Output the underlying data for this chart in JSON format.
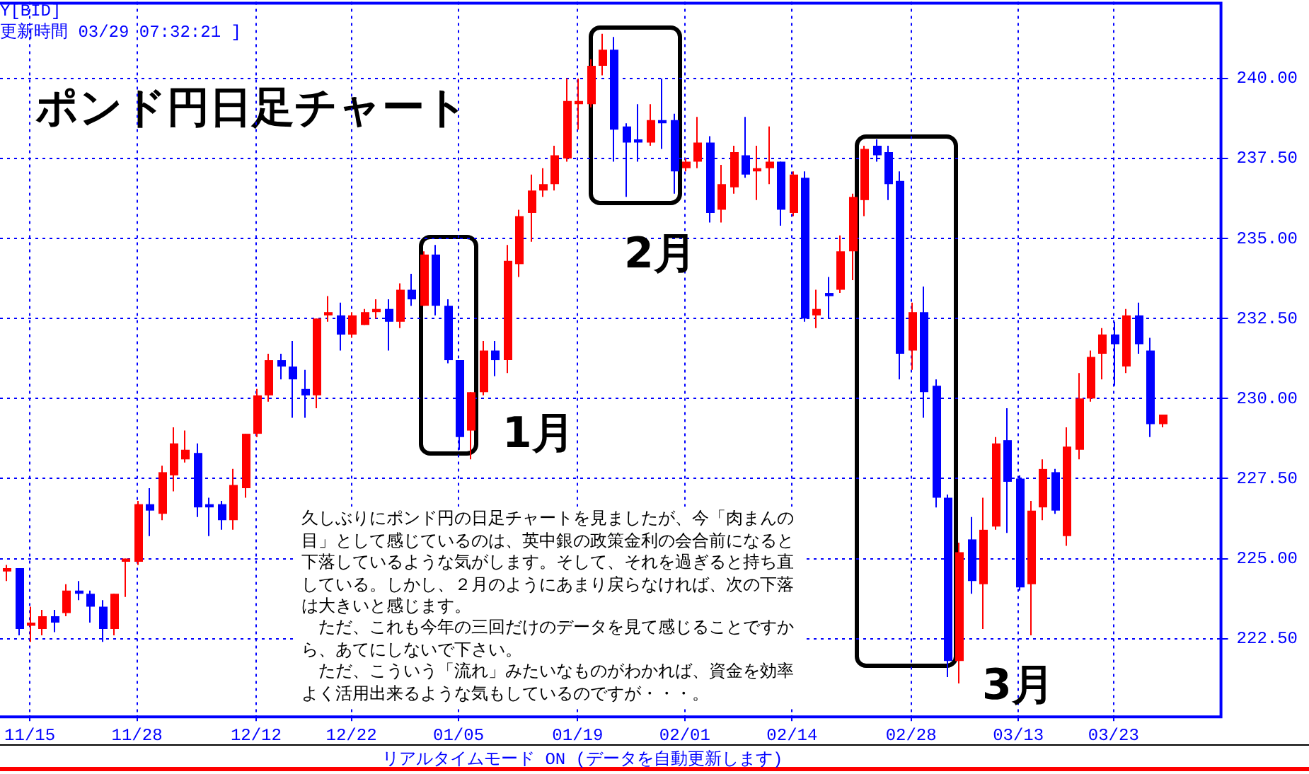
{
  "chart_data": {
    "type": "candlestick",
    "title": "ポンド円日足チャート",
    "categories": [
      null,
      null,
      "11/15",
      null,
      null,
      null,
      null,
      null,
      null,
      null,
      null,
      "11/28",
      null,
      null,
      null,
      null,
      null,
      null,
      null,
      null,
      null,
      "12/12",
      null,
      null,
      null,
      null,
      null,
      null,
      null,
      "12/22",
      null,
      null,
      null,
      null,
      null,
      null,
      null,
      null,
      "01/05",
      null,
      null,
      null,
      null,
      null,
      null,
      null,
      null,
      null,
      "01/19",
      null,
      null,
      null,
      null,
      null,
      null,
      null,
      null,
      "02/01",
      null,
      null,
      null,
      null,
      null,
      null,
      null,
      null,
      "02/14",
      null,
      null,
      null,
      null,
      null,
      null,
      null,
      null,
      null,
      "02/28",
      null,
      null,
      null,
      null,
      null,
      null,
      null,
      null,
      "03/13",
      null,
      null,
      null,
      null,
      null,
      null,
      null,
      "03/23",
      null,
      null,
      null,
      null
    ],
    "ohlc": [
      [
        224.6,
        224.8,
        224.3,
        224.7
      ],
      [
        224.7,
        224.7,
        222.6,
        222.8
      ],
      [
        222.9,
        223.5,
        222.4,
        223.0
      ],
      [
        222.8,
        223.4,
        222.6,
        223.2
      ],
      [
        223.2,
        223.4,
        222.7,
        223.0
      ],
      [
        223.3,
        224.2,
        223.2,
        224.0
      ],
      [
        224.0,
        224.3,
        223.7,
        223.9
      ],
      [
        223.9,
        224.0,
        223.0,
        223.5
      ],
      [
        223.5,
        223.7,
        222.4,
        222.8
      ],
      [
        222.8,
        223.9,
        222.6,
        223.9
      ],
      [
        224.9,
        225.0,
        223.8,
        225.0
      ],
      [
        224.9,
        226.8,
        224.8,
        226.7
      ],
      [
        226.7,
        227.2,
        225.7,
        226.5
      ],
      [
        226.4,
        227.9,
        226.2,
        227.7
      ],
      [
        227.6,
        229.1,
        227.1,
        228.6
      ],
      [
        228.1,
        229.0,
        228.0,
        228.4
      ],
      [
        228.3,
        228.6,
        226.3,
        226.6
      ],
      [
        226.7,
        226.9,
        225.7,
        226.6
      ],
      [
        226.7,
        226.8,
        225.9,
        226.2
      ],
      [
        226.2,
        227.8,
        225.9,
        227.3
      ],
      [
        227.2,
        228.9,
        226.9,
        228.9
      ],
      [
        228.9,
        230.3,
        228.8,
        230.1
      ],
      [
        230.1,
        231.4,
        229.9,
        231.2
      ],
      [
        231.2,
        231.4,
        230.6,
        231.0
      ],
      [
        231.0,
        231.8,
        229.4,
        230.6
      ],
      [
        230.3,
        230.9,
        229.4,
        230.1
      ],
      [
        230.1,
        232.5,
        229.7,
        232.5
      ],
      [
        232.6,
        233.2,
        232.4,
        232.7
      ],
      [
        232.6,
        233.0,
        231.5,
        232.0
      ],
      [
        232.0,
        232.7,
        231.9,
        232.6
      ],
      [
        232.3,
        232.8,
        232.3,
        232.7
      ],
      [
        232.7,
        233.1,
        232.5,
        232.8
      ],
      [
        232.8,
        233.1,
        231.5,
        232.4
      ],
      [
        232.4,
        233.6,
        232.2,
        233.4
      ],
      [
        233.4,
        233.9,
        232.9,
        233.1
      ],
      [
        232.9,
        234.6,
        232.9,
        234.5
      ],
      [
        234.5,
        234.8,
        232.6,
        232.9
      ],
      [
        232.9,
        233.1,
        231.1,
        231.2
      ],
      [
        231.2,
        231.2,
        228.4,
        228.8
      ],
      [
        229.0,
        230.2,
        228.1,
        230.2
      ],
      [
        230.2,
        231.8,
        230.1,
        231.5
      ],
      [
        231.5,
        231.8,
        230.7,
        231.2
      ],
      [
        231.2,
        234.8,
        230.8,
        234.3
      ],
      [
        234.2,
        235.9,
        233.8,
        235.7
      ],
      [
        235.8,
        237.0,
        234.9,
        236.5
      ],
      [
        236.5,
        237.2,
        236.3,
        236.7
      ],
      [
        236.7,
        237.9,
        236.5,
        237.6
      ],
      [
        237.5,
        240.0,
        237.4,
        239.3
      ],
      [
        239.2,
        240.0,
        238.4,
        239.3
      ],
      [
        239.2,
        240.6,
        239.1,
        240.4
      ],
      [
        240.4,
        241.4,
        240.1,
        240.9
      ],
      [
        240.9,
        241.3,
        237.4,
        238.4
      ],
      [
        238.5,
        238.6,
        236.3,
        238.0
      ],
      [
        238.1,
        239.2,
        237.4,
        238.0
      ],
      [
        238.0,
        239.2,
        237.9,
        238.7
      ],
      [
        238.7,
        240.0,
        237.8,
        238.6
      ],
      [
        238.7,
        238.9,
        236.4,
        237.1
      ],
      [
        237.2,
        237.5,
        237.1,
        237.4
      ],
      [
        237.4,
        238.8,
        237.2,
        238.0
      ],
      [
        238.0,
        238.2,
        235.5,
        235.8
      ],
      [
        235.9,
        237.3,
        235.5,
        236.7
      ],
      [
        236.6,
        237.9,
        236.4,
        237.7
      ],
      [
        237.6,
        238.8,
        236.9,
        237.0
      ],
      [
        237.1,
        237.9,
        236.2,
        237.2
      ],
      [
        237.2,
        238.5,
        236.7,
        237.4
      ],
      [
        237.4,
        237.4,
        235.4,
        235.9
      ],
      [
        235.8,
        237.1,
        235.7,
        237.0
      ],
      [
        236.9,
        237.1,
        232.4,
        232.5
      ],
      [
        232.6,
        233.4,
        232.2,
        232.8
      ],
      [
        233.3,
        233.8,
        232.5,
        233.2
      ],
      [
        233.4,
        235.1,
        233.3,
        234.6
      ],
      [
        234.6,
        236.4,
        233.7,
        236.3
      ],
      [
        236.2,
        237.9,
        235.7,
        237.8
      ],
      [
        237.9,
        238.1,
        237.4,
        237.6
      ],
      [
        237.7,
        237.9,
        236.2,
        236.7
      ],
      [
        236.8,
        237.1,
        230.6,
        231.4
      ],
      [
        231.5,
        233.0,
        230.9,
        232.7
      ],
      [
        232.7,
        233.5,
        229.4,
        230.2
      ],
      [
        230.4,
        230.6,
        226.6,
        226.9
      ],
      [
        226.9,
        227.0,
        221.3,
        221.8
      ],
      [
        221.8,
        225.5,
        221.1,
        225.2
      ],
      [
        225.6,
        226.3,
        223.9,
        224.3
      ],
      [
        224.2,
        226.9,
        222.8,
        225.9
      ],
      [
        226.0,
        228.8,
        225.9,
        228.6
      ],
      [
        228.7,
        229.7,
        225.8,
        227.4
      ],
      [
        227.5,
        227.6,
        224.0,
        224.1
      ],
      [
        224.2,
        226.8,
        222.6,
        226.5
      ],
      [
        226.6,
        228.1,
        226.2,
        227.8
      ],
      [
        227.7,
        227.8,
        226.4,
        226.5
      ],
      [
        225.7,
        229.1,
        225.4,
        228.5
      ],
      [
        228.4,
        230.8,
        228.1,
        230.0
      ],
      [
        230.0,
        231.5,
        229.9,
        231.3
      ],
      [
        231.4,
        232.2,
        230.6,
        232.0
      ],
      [
        232.0,
        232.4,
        230.4,
        231.7
      ],
      [
        231.0,
        232.8,
        230.8,
        232.6
      ],
      [
        232.6,
        233.0,
        231.4,
        231.7
      ],
      [
        231.5,
        231.9,
        228.8,
        229.2
      ],
      [
        229.2,
        229.5,
        229.1,
        229.5
      ]
    ],
    "colors": [
      "#ff0000",
      "#0000ff",
      "#ff0000",
      "#ff0000",
      "#0000ff",
      "#ff0000",
      "#0000ff",
      "#0000ff",
      "#0000ff",
      "#ff0000",
      "#ff0000",
      "#ff0000",
      "#0000ff",
      "#ff0000",
      "#ff0000",
      "#ff0000",
      "#0000ff",
      "#0000ff",
      "#0000ff",
      "#ff0000",
      "#ff0000",
      "#ff0000",
      "#ff0000",
      "#0000ff",
      "#0000ff",
      "#0000ff",
      "#ff0000",
      "#ff0000",
      "#0000ff",
      "#ff0000",
      "#ff0000",
      "#ff0000",
      "#0000ff",
      "#ff0000",
      "#0000ff",
      "#ff0000",
      "#0000ff",
      "#0000ff",
      "#0000ff",
      "#ff0000",
      "#ff0000",
      "#0000ff",
      "#ff0000",
      "#ff0000",
      "#ff0000",
      "#ff0000",
      "#ff0000",
      "#ff0000",
      "#ff0000",
      "#ff0000",
      "#ff0000",
      "#0000ff",
      "#0000ff",
      "#0000ff",
      "#ff0000",
      "#0000ff",
      "#0000ff",
      "#ff0000",
      "#ff0000",
      "#0000ff",
      "#ff0000",
      "#ff0000",
      "#0000ff",
      "#ff0000",
      "#ff0000",
      "#0000ff",
      "#ff0000",
      "#0000ff",
      "#ff0000",
      "#0000ff",
      "#ff0000",
      "#ff0000",
      "#ff0000",
      "#0000ff",
      "#0000ff",
      "#0000ff",
      "#ff0000",
      "#0000ff",
      "#0000ff",
      "#0000ff",
      "#ff0000",
      "#0000ff",
      "#ff0000",
      "#ff0000",
      "#0000ff",
      "#0000ff",
      "#ff0000",
      "#ff0000",
      "#0000ff",
      "#ff0000",
      "#ff0000",
      "#ff0000",
      "#ff0000",
      "#0000ff",
      "#ff0000",
      "#0000ff",
      "#0000ff",
      "#ff0000"
    ],
    "ylim": [
      220.1,
      242.4
    ],
    "yticks": [
      {
        "value": 222.5,
        "label": "222.50"
      },
      {
        "value": 225,
        "label": "225.00"
      },
      {
        "value": 227.5,
        "label": "227.50"
      },
      {
        "value": 230,
        "label": "230.00"
      },
      {
        "value": 232.5,
        "label": "232.50"
      },
      {
        "value": 235,
        "label": "235.00"
      },
      {
        "value": 237.5,
        "label": "237.50"
      },
      {
        "value": 240,
        "label": "240.00"
      }
    ],
    "grid": true,
    "annotations": [
      "Y[BID]",
      "更新時間 03/29 07:32:21 ]",
      "1月",
      "2月",
      "3月",
      "久しぶりにポンド円の日足チャートを見ましたが、今「肉まんの目」として感じているのは、英中銀の政策金利の会合前になると下落しているような気がします。そして、それを過ぎると持ち直している。しかし、２月のようにあまり戻らなければ、次の下落は大きいと感じます。",
      "　ただ、これも今年の三回だけのデータを見て感じることですから、あてにしないで下さい。",
      "　ただ、こういう「流れ」みたいなものがわかれば、資金を効率よく活用出来るような気もしているのですが・・・。",
      "リアルタイムモード ON (データを自動更新します)"
    ]
  }
}
